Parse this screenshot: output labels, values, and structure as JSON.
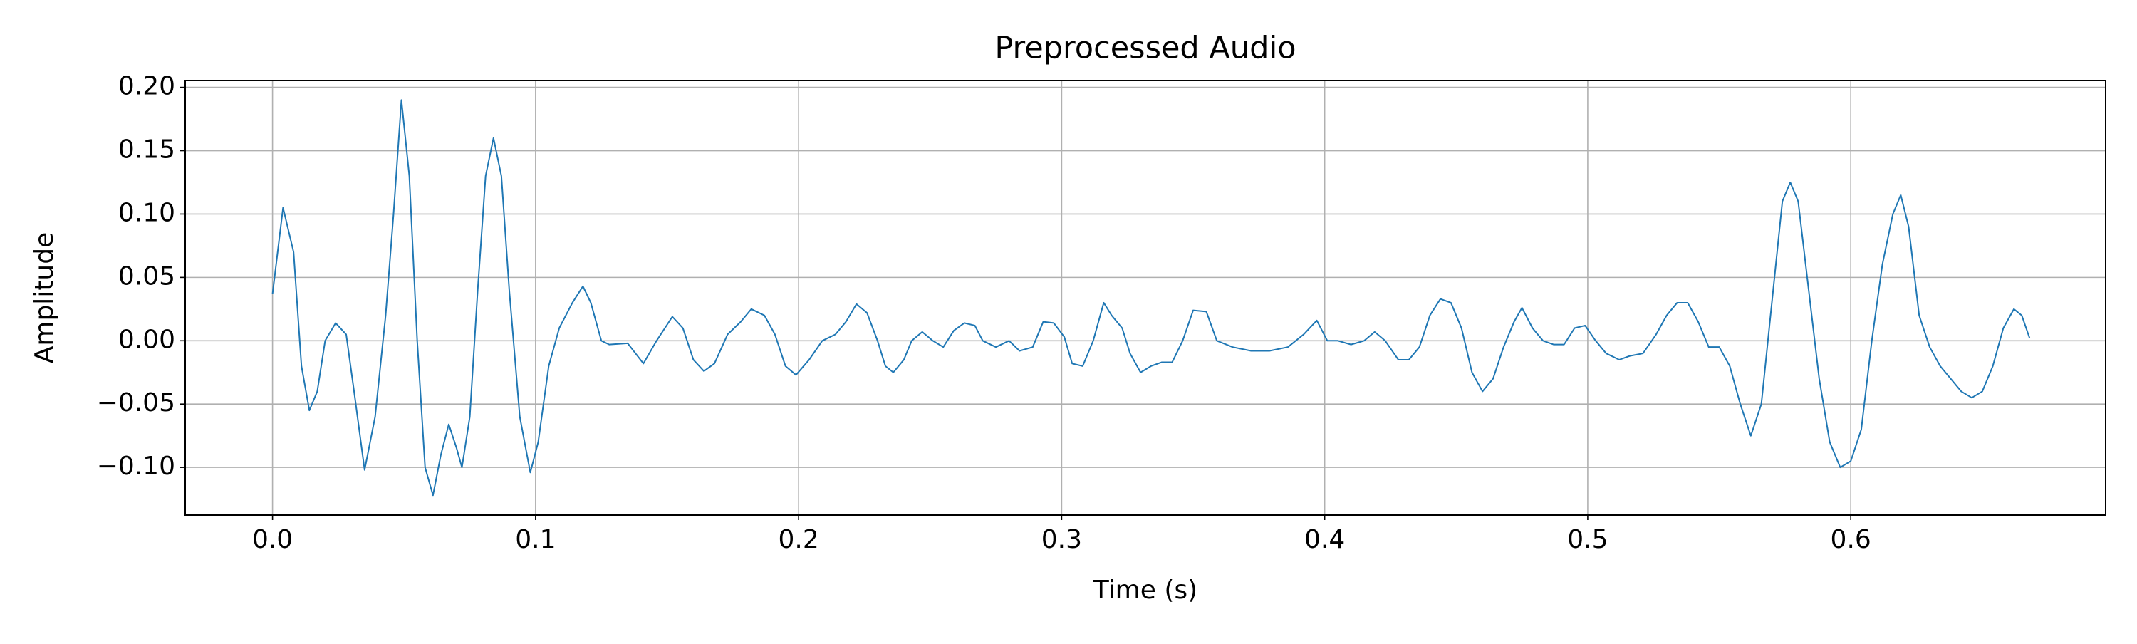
{
  "chart_data": {
    "type": "line",
    "title": "Preprocessed Audio",
    "xlabel": "Time (s)",
    "ylabel": "Amplitude",
    "color": "#1f77b4",
    "grid": true,
    "xlim": [
      -0.0332,
      0.6969
    ],
    "ylim": [
      -0.1376,
      0.2054
    ],
    "xticks": [
      {
        "value": 0,
        "label": "0.0"
      },
      0.1,
      0.2,
      0.3,
      0.4,
      0.5,
      0.6
    ],
    "yticks": [
      {
        "value": -0.1,
        "label": "−0.10"
      },
      {
        "value": -0.05,
        "label": "−0.05"
      },
      {
        "value": 0,
        "label": "0.00"
      },
      {
        "value": 0.05,
        "label": "0.05"
      },
      {
        "value": 0.1,
        "label": "0.10"
      },
      {
        "value": 0.15,
        "label": "0.15"
      },
      {
        "value": 0.2,
        "label": "0.20"
      }
    ],
    "x": [
      0.0,
      0.004,
      0.008,
      0.011,
      0.014,
      0.017,
      0.02,
      0.024,
      0.028,
      0.031,
      0.035,
      0.039,
      0.043,
      0.046,
      0.049,
      0.052,
      0.055,
      0.058,
      0.061,
      0.064,
      0.067,
      0.07,
      0.072,
      0.075,
      0.078,
      0.081,
      0.084,
      0.087,
      0.09,
      0.094,
      0.098,
      0.101,
      0.105,
      0.109,
      0.114,
      0.118,
      0.121,
      0.125,
      0.128,
      0.135,
      0.141,
      0.146,
      0.152,
      0.156,
      0.16,
      0.164,
      0.168,
      0.173,
      0.178,
      0.182,
      0.187,
      0.191,
      0.195,
      0.199,
      0.204,
      0.209,
      0.214,
      0.218,
      0.222,
      0.226,
      0.23,
      0.233,
      0.236,
      0.24,
      0.243,
      0.247,
      0.251,
      0.255,
      0.259,
      0.263,
      0.267,
      0.27,
      0.275,
      0.28,
      0.284,
      0.289,
      0.293,
      0.297,
      0.301,
      0.304,
      0.308,
      0.312,
      0.316,
      0.319,
      0.323,
      0.326,
      0.33,
      0.334,
      0.338,
      0.342,
      0.346,
      0.35,
      0.355,
      0.359,
      0.365,
      0.372,
      0.379,
      0.386,
      0.392,
      0.397,
      0.401,
      0.405,
      0.41,
      0.415,
      0.419,
      0.423,
      0.428,
      0.432,
      0.436,
      0.44,
      0.444,
      0.448,
      0.452,
      0.456,
      0.46,
      0.464,
      0.468,
      0.472,
      0.475,
      0.479,
      0.483,
      0.487,
      0.491,
      0.495,
      0.499,
      0.503,
      0.507,
      0.512,
      0.516,
      0.521,
      0.526,
      0.53,
      0.534,
      0.538,
      0.542,
      0.546,
      0.55,
      0.554,
      0.558,
      0.562,
      0.566,
      0.57,
      0.574,
      0.577,
      0.58,
      0.584,
      0.588,
      0.592,
      0.596,
      0.6,
      0.604,
      0.608,
      0.612,
      0.616,
      0.619,
      0.622,
      0.626,
      0.63,
      0.634,
      0.638,
      0.642,
      0.646,
      0.65,
      0.654,
      0.658,
      0.662,
      0.665,
      0.668
    ],
    "values": [
      0.037,
      0.105,
      0.07,
      -0.02,
      -0.055,
      -0.04,
      0.0,
      0.014,
      0.005,
      -0.04,
      -0.102,
      -0.06,
      0.02,
      0.1,
      0.19,
      0.13,
      0.0,
      -0.1,
      -0.122,
      -0.09,
      -0.066,
      -0.085,
      -0.1,
      -0.06,
      0.04,
      0.13,
      0.16,
      0.13,
      0.04,
      -0.06,
      -0.104,
      -0.08,
      -0.02,
      0.01,
      0.03,
      0.043,
      0.03,
      0.0,
      -0.003,
      -0.002,
      -0.018,
      0.0,
      0.019,
      0.01,
      -0.015,
      -0.024,
      -0.018,
      0.005,
      0.015,
      0.025,
      0.02,
      0.005,
      -0.02,
      -0.027,
      -0.015,
      0.0,
      0.005,
      0.015,
      0.029,
      0.022,
      0.0,
      -0.02,
      -0.025,
      -0.015,
      0.0,
      0.007,
      0.0,
      -0.005,
      0.008,
      0.014,
      0.012,
      0.0,
      -0.005,
      0.0,
      -0.008,
      -0.005,
      0.015,
      0.014,
      0.003,
      -0.018,
      -0.02,
      0.0,
      0.03,
      0.02,
      0.01,
      -0.01,
      -0.025,
      -0.02,
      -0.017,
      -0.017,
      0.0,
      0.024,
      0.023,
      0.0,
      -0.005,
      -0.008,
      -0.008,
      -0.005,
      0.005,
      0.016,
      0.0,
      0.0,
      -0.003,
      0.0,
      0.007,
      0.0,
      -0.015,
      -0.015,
      -0.005,
      0.02,
      0.033,
      0.03,
      0.01,
      -0.025,
      -0.04,
      -0.03,
      -0.005,
      0.015,
      0.026,
      0.01,
      0.0,
      -0.003,
      -0.003,
      0.01,
      0.012,
      0.0,
      -0.01,
      -0.015,
      -0.012,
      -0.01,
      0.005,
      0.02,
      0.03,
      0.03,
      0.015,
      -0.005,
      -0.005,
      -0.02,
      -0.05,
      -0.075,
      -0.05,
      0.03,
      0.11,
      0.125,
      0.11,
      0.04,
      -0.03,
      -0.08,
      -0.1,
      -0.095,
      -0.07,
      0.0,
      0.06,
      0.1,
      0.115,
      0.09,
      0.02,
      -0.005,
      -0.02,
      -0.03,
      -0.04,
      -0.045,
      -0.04,
      -0.02,
      0.01,
      0.025,
      0.02,
      0.002
    ]
  }
}
